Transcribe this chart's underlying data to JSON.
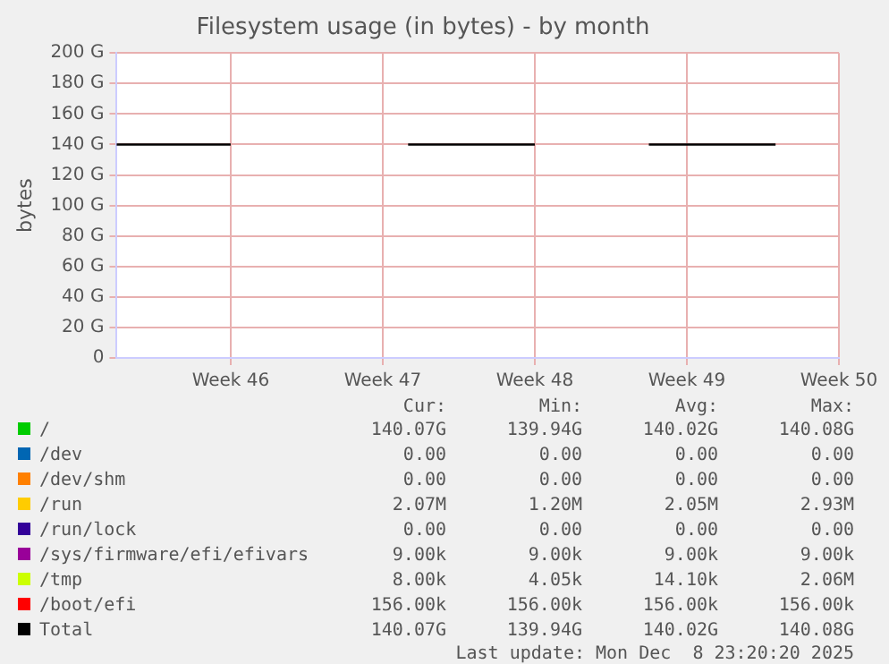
{
  "chart_data": {
    "type": "line",
    "title": "Filesystem usage (in bytes) - by month",
    "ylabel": "bytes",
    "categories": [
      null,
      null,
      null,
      null,
      null,
      null,
      null,
      null,
      null,
      "Week 46",
      null,
      null,
      null,
      null,
      null,
      null,
      null,
      null,
      null,
      null,
      null,
      "Week 47",
      null,
      null,
      null,
      null,
      null,
      null,
      null,
      null,
      null,
      null,
      null,
      "Week 48",
      null,
      null,
      null,
      null,
      null,
      null,
      null,
      null,
      null,
      null,
      null,
      "Week 49",
      null,
      null,
      null,
      null,
      null,
      null,
      null,
      null,
      null,
      null,
      null,
      "Week 50"
    ],
    "series": [
      {
        "name": "/",
        "color": "#00cc00",
        "values": [
          null,
          null,
          null,
          null,
          null,
          null,
          null,
          null,
          null,
          null,
          null,
          null,
          null,
          null,
          null,
          null,
          null,
          null,
          null,
          null,
          null,
          null,
          null,
          null,
          null,
          null,
          null,
          null,
          null,
          null,
          null,
          null,
          null,
          null,
          null,
          null,
          null,
          null,
          null,
          null,
          null,
          null,
          null,
          null,
          null,
          null,
          null,
          null,
          null,
          null,
          null,
          null,
          null,
          null,
          null,
          null,
          null,
          null
        ]
      },
      {
        "name": "/dev",
        "color": "#0066b3",
        "values": [
          null,
          null,
          null,
          null,
          null,
          null,
          null,
          null,
          null,
          null,
          null,
          null,
          null,
          null,
          null,
          null,
          null,
          null,
          null,
          null,
          null,
          null,
          null,
          null,
          null,
          null,
          null,
          null,
          null,
          null,
          null,
          null,
          null,
          null,
          null,
          null,
          null,
          null,
          null,
          null,
          null,
          null,
          null,
          null,
          null,
          null,
          null,
          null,
          null,
          null,
          null,
          null,
          null,
          null,
          null,
          null,
          null,
          null
        ]
      },
      {
        "name": "/dev/shm",
        "color": "#ff8000",
        "values": [
          null,
          null,
          null,
          null,
          null,
          null,
          null,
          null,
          null,
          null,
          null,
          null,
          null,
          null,
          null,
          null,
          null,
          null,
          null,
          null,
          null,
          null,
          null,
          null,
          null,
          null,
          null,
          null,
          null,
          null,
          null,
          null,
          null,
          null,
          null,
          null,
          null,
          null,
          null,
          null,
          null,
          null,
          null,
          null,
          null,
          null,
          null,
          null,
          null,
          null,
          null,
          null,
          null,
          null,
          null,
          null,
          null,
          null
        ]
      },
      {
        "name": "/run",
        "color": "#ffcc00",
        "values": [
          null,
          null,
          null,
          null,
          null,
          null,
          null,
          null,
          null,
          null,
          null,
          null,
          null,
          null,
          null,
          null,
          null,
          null,
          null,
          null,
          null,
          null,
          null,
          null,
          null,
          null,
          null,
          null,
          null,
          null,
          null,
          null,
          null,
          null,
          null,
          null,
          null,
          null,
          null,
          null,
          null,
          null,
          null,
          null,
          null,
          null,
          null,
          null,
          null,
          null,
          null,
          null,
          null,
          null,
          null,
          null,
          null,
          null
        ]
      },
      {
        "name": "/run/lock",
        "color": "#330099",
        "values": [
          null,
          null,
          null,
          null,
          null,
          null,
          null,
          null,
          null,
          null,
          null,
          null,
          null,
          null,
          null,
          null,
          null,
          null,
          null,
          null,
          null,
          null,
          null,
          null,
          null,
          null,
          null,
          null,
          null,
          null,
          null,
          null,
          null,
          null,
          null,
          null,
          null,
          null,
          null,
          null,
          null,
          null,
          null,
          null,
          null,
          null,
          null,
          null,
          null,
          null,
          null,
          null,
          null,
          null,
          null,
          null,
          null,
          null
        ]
      },
      {
        "name": "/sys/firmware/efi/efivars",
        "color": "#990099",
        "values": [
          null,
          null,
          null,
          null,
          null,
          null,
          null,
          null,
          null,
          null,
          null,
          null,
          null,
          null,
          null,
          null,
          null,
          null,
          null,
          null,
          null,
          null,
          null,
          null,
          null,
          null,
          null,
          null,
          null,
          null,
          null,
          null,
          null,
          null,
          null,
          null,
          null,
          null,
          null,
          null,
          null,
          null,
          null,
          null,
          null,
          null,
          null,
          null,
          null,
          null,
          null,
          null,
          null,
          null,
          null,
          null,
          null,
          null
        ]
      },
      {
        "name": "/tmp",
        "color": "#ccff00",
        "values": [
          null,
          null,
          null,
          null,
          null,
          null,
          null,
          null,
          null,
          null,
          null,
          null,
          null,
          null,
          null,
          null,
          null,
          null,
          null,
          null,
          null,
          null,
          null,
          null,
          null,
          null,
          null,
          null,
          null,
          null,
          null,
          null,
          null,
          null,
          null,
          null,
          null,
          null,
          null,
          null,
          null,
          null,
          null,
          null,
          null,
          null,
          null,
          null,
          null,
          null,
          null,
          null,
          null,
          null,
          null,
          null,
          null,
          null
        ]
      },
      {
        "name": "/boot/efi",
        "color": "#ff0000",
        "values": [
          null,
          null,
          null,
          null,
          null,
          null,
          null,
          null,
          null,
          null,
          null,
          null,
          null,
          null,
          null,
          null,
          null,
          null,
          null,
          null,
          null,
          null,
          null,
          null,
          null,
          null,
          null,
          null,
          null,
          null,
          null,
          null,
          null,
          null,
          null,
          null,
          null,
          null,
          null,
          null,
          null,
          null,
          null,
          null,
          null,
          null,
          null,
          null,
          null,
          null,
          null,
          null,
          null,
          null,
          null,
          null,
          null,
          null
        ]
      },
      {
        "name": "Total",
        "color": "#000000",
        "values": [
          140,
          140,
          140,
          140,
          140,
          140,
          140,
          140,
          140,
          140,
          null,
          null,
          null,
          null,
          null,
          null,
          null,
          null,
          null,
          null,
          null,
          null,
          null,
          140,
          140,
          140,
          140,
          140,
          140,
          140,
          140,
          140,
          140,
          140,
          null,
          null,
          null,
          null,
          null,
          null,
          null,
          null,
          140,
          140,
          140,
          140,
          140,
          140,
          140,
          140,
          140,
          140,
          140,
          null,
          null,
          null,
          null,
          null
        ]
      }
    ],
    "ylim": [
      0,
      200
    ],
    "yticks": [
      0,
      {
        "value": 20,
        "label": "20 G"
      },
      {
        "value": 40,
        "label": "40 G"
      },
      {
        "value": 60,
        "label": "60 G"
      },
      {
        "value": 80,
        "label": "80 G"
      },
      {
        "value": 100,
        "label": "100 G"
      },
      {
        "value": 120,
        "label": "120 G"
      },
      {
        "value": 140,
        "label": "140 G"
      },
      {
        "value": 160,
        "label": "160 G"
      },
      {
        "value": 180,
        "label": "180 G"
      },
      {
        "value": 200,
        "label": "200 G"
      }
    ],
    "grid": true,
    "legend": "bottom",
    "marker": "none",
    "line_style": "solid",
    "annotations": [
      "Cur:",
      "Min:",
      "Avg:",
      "Max:",
      "140.07G",
      "139.94G",
      "140.02G",
      "140.08G",
      "0.00",
      "0.00",
      "0.00",
      "0.00",
      "0.00",
      "0.00",
      "0.00",
      "0.00",
      "2.07M",
      "1.20M",
      "2.05M",
      "2.93M",
      "0.00",
      "0.00",
      "0.00",
      "0.00",
      "9.00k",
      "9.00k",
      "9.00k",
      "9.00k",
      "8.00k",
      "4.05k",
      "14.10k",
      "2.06M",
      "156.00k",
      "156.00k",
      "156.00k",
      "156.00k",
      "140.07G",
      "139.94G",
      "140.02G",
      "140.08G",
      "Last update: Mon Dec  8 23:20:20 2025"
    ]
  }
}
